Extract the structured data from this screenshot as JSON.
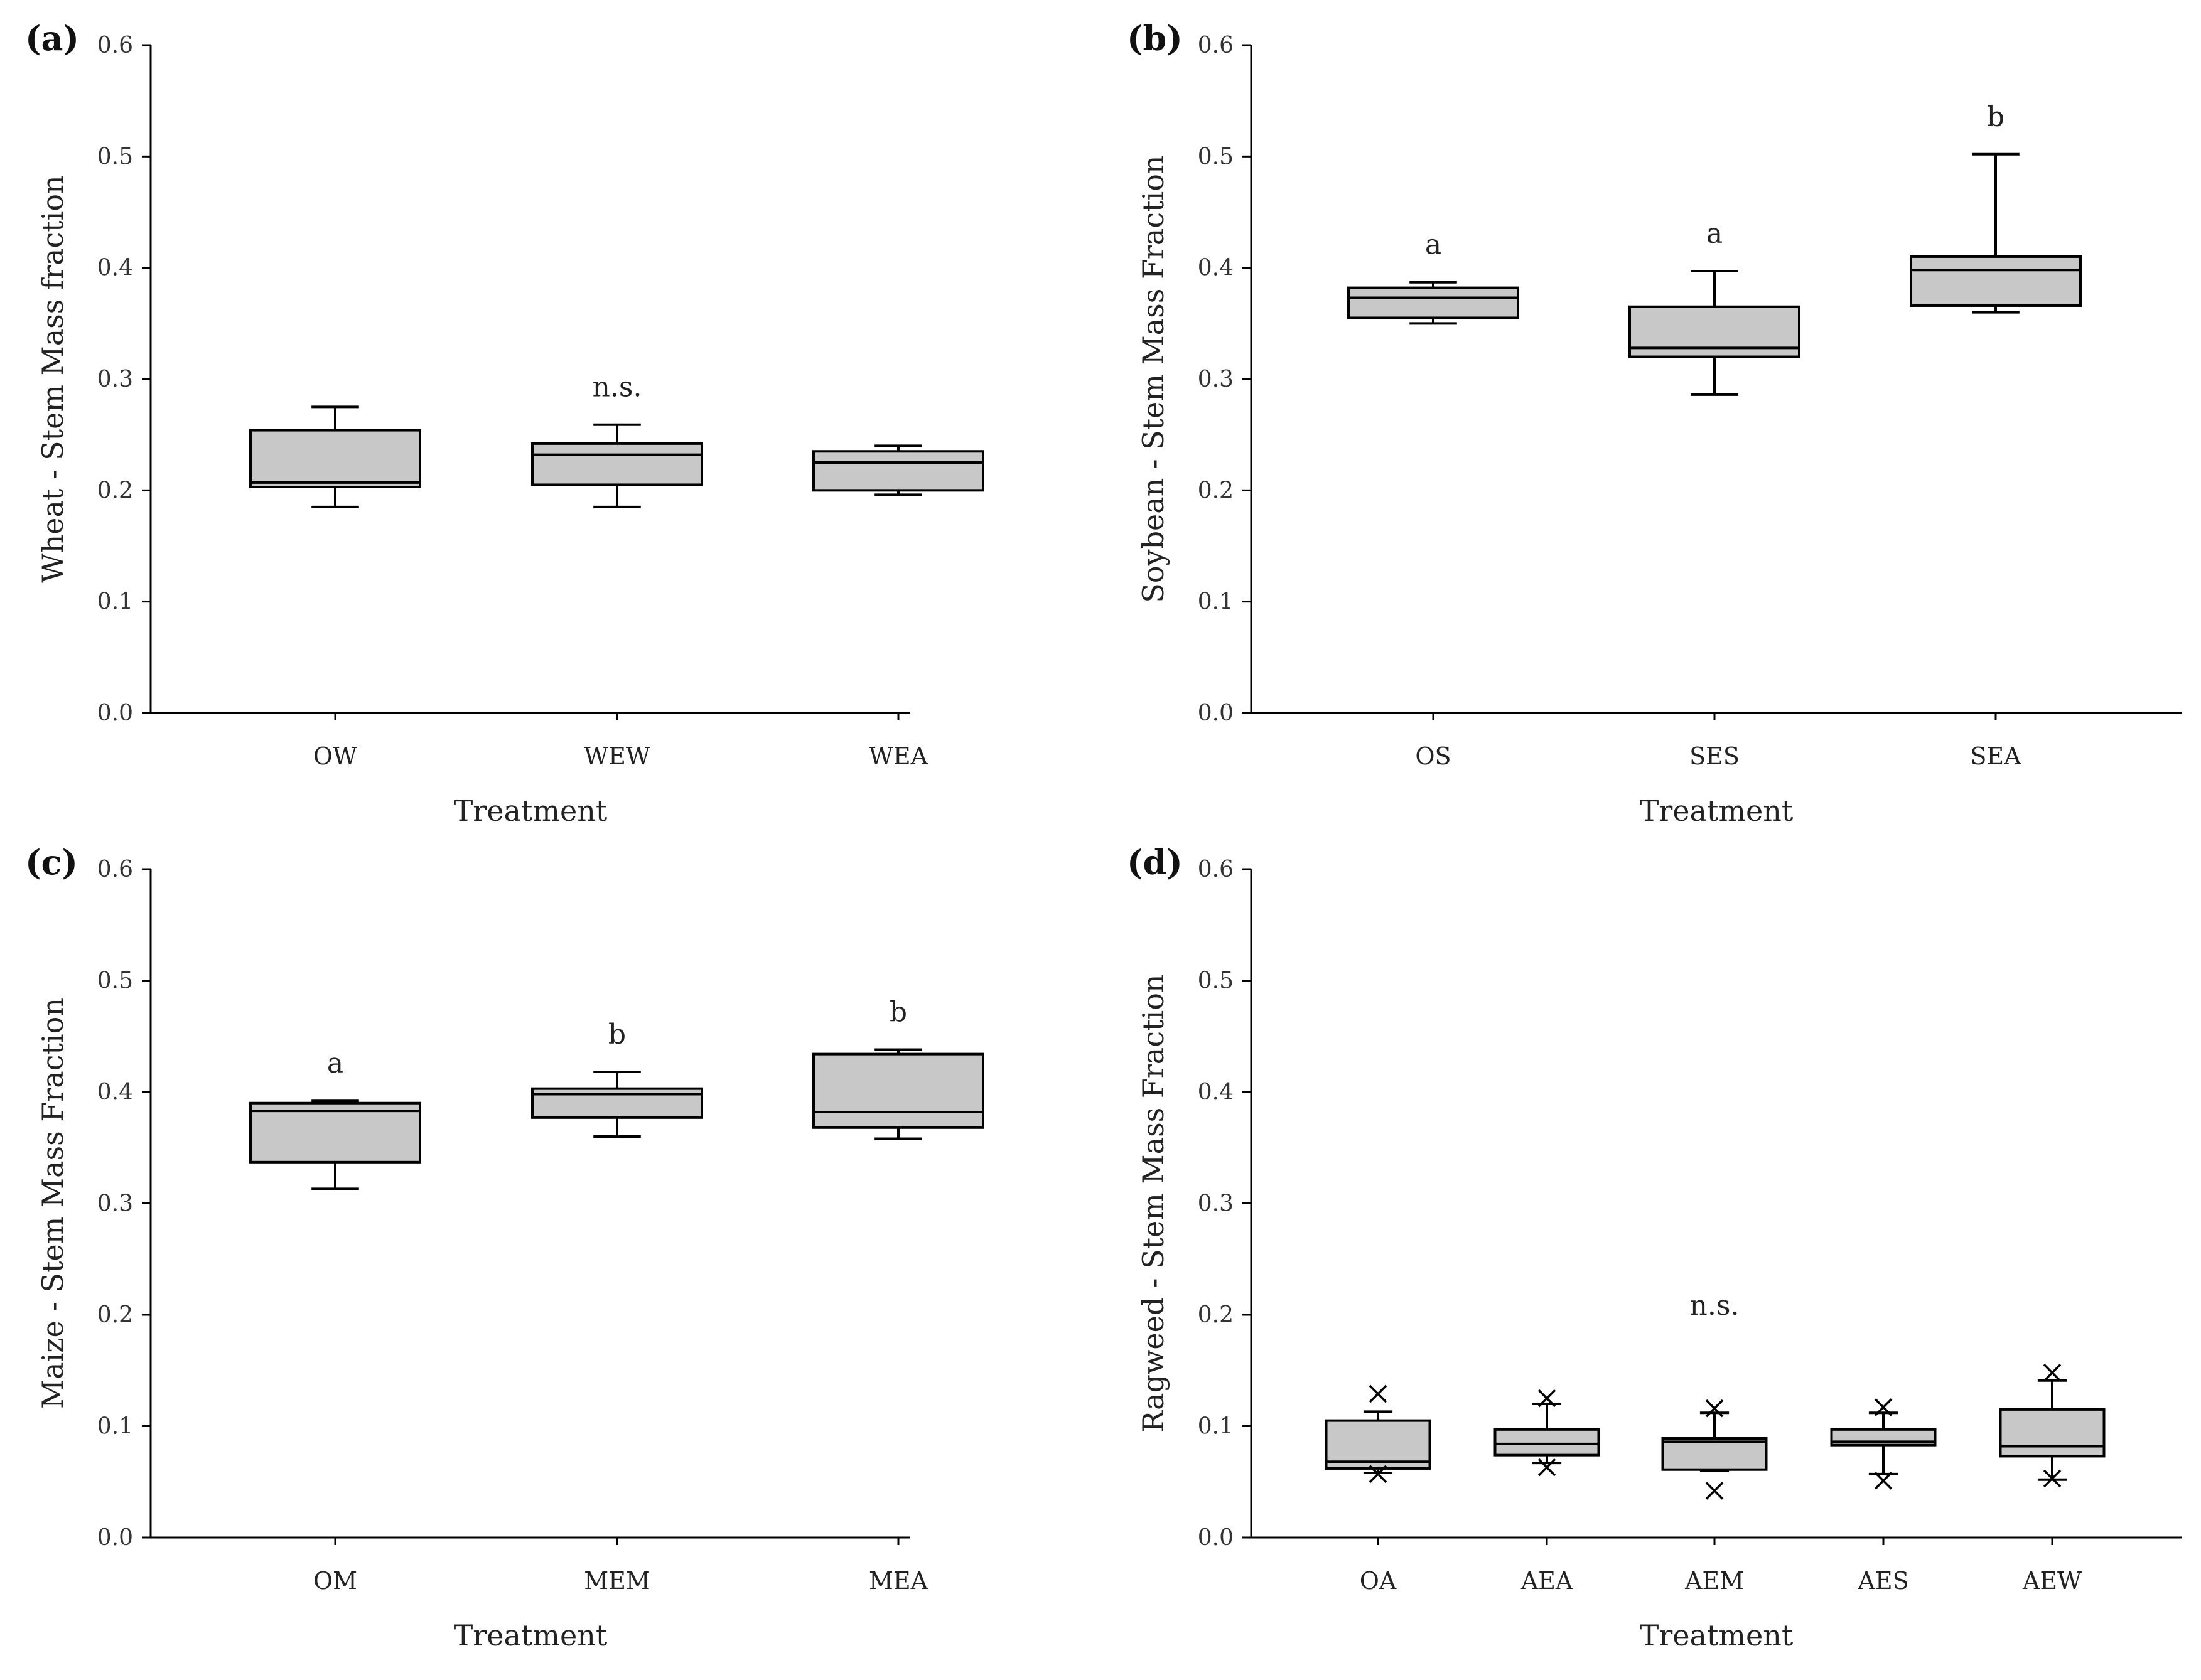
{
  "chart_data": [
    {
      "type": "box",
      "panel_label": "(a)",
      "ylabel": "Wheat - Stem Mass fraction",
      "xlabel": "Treatment",
      "ylim": [
        0,
        0.6
      ],
      "yticks": [
        "0.0",
        "0.1",
        "0.2",
        "0.3",
        "0.4",
        "0.5",
        "0.6"
      ],
      "groups": [
        {
          "category": "OW",
          "min": 0.185,
          "q1": 0.203,
          "median": 0.207,
          "q3": 0.254,
          "max": 0.275,
          "outliers": [],
          "sig": ""
        },
        {
          "category": "WEW",
          "min": 0.185,
          "q1": 0.205,
          "median": 0.232,
          "q3": 0.242,
          "max": 0.259,
          "outliers": [],
          "sig": "n.s."
        },
        {
          "category": "WEA",
          "min": 0.196,
          "q1": 0.2,
          "median": 0.225,
          "q3": 0.235,
          "max": 0.24,
          "outliers": [],
          "sig": ""
        }
      ]
    },
    {
      "type": "box",
      "panel_label": "(b)",
      "ylabel": "Soybean - Stem Mass Fraction",
      "xlabel": "Treatment",
      "ylim": [
        0,
        0.6
      ],
      "yticks": [
        "0.0",
        "0.1",
        "0.2",
        "0.3",
        "0.4",
        "0.5",
        "0.6"
      ],
      "groups": [
        {
          "category": "OS",
          "min": 0.35,
          "q1": 0.355,
          "median": 0.373,
          "q3": 0.382,
          "max": 0.387,
          "outliers": [],
          "sig": "a"
        },
        {
          "category": "SES",
          "min": 0.286,
          "q1": 0.32,
          "median": 0.328,
          "q3": 0.365,
          "max": 0.397,
          "outliers": [],
          "sig": "a"
        },
        {
          "category": "SEA",
          "min": 0.36,
          "q1": 0.366,
          "median": 0.398,
          "q3": 0.41,
          "max": 0.502,
          "outliers": [],
          "sig": "b"
        }
      ]
    },
    {
      "type": "box",
      "panel_label": "(c)",
      "ylabel": "Maize - Stem Mass Fraction",
      "xlabel": "Treatment",
      "ylim": [
        0,
        0.6
      ],
      "yticks": [
        "0.0",
        "0.1",
        "0.2",
        "0.3",
        "0.4",
        "0.5",
        "0.6"
      ],
      "groups": [
        {
          "category": "OM",
          "min": 0.313,
          "q1": 0.337,
          "median": 0.383,
          "q3": 0.39,
          "max": 0.392,
          "outliers": [],
          "sig": "a"
        },
        {
          "category": "MEM",
          "min": 0.36,
          "q1": 0.377,
          "median": 0.398,
          "q3": 0.403,
          "max": 0.418,
          "outliers": [],
          "sig": "b"
        },
        {
          "category": "MEA",
          "min": 0.358,
          "q1": 0.368,
          "median": 0.382,
          "q3": 0.434,
          "max": 0.438,
          "outliers": [],
          "sig": "b"
        }
      ]
    },
    {
      "type": "box",
      "panel_label": "(d)",
      "ylabel": "Ragweed - Stem Mass Fraction",
      "xlabel": "Treatment",
      "ylim": [
        0,
        0.6
      ],
      "yticks": [
        "0.0",
        "0.1",
        "0.2",
        "0.3",
        "0.4",
        "0.5",
        "0.6"
      ],
      "sig_text": "n.s.",
      "groups": [
        {
          "category": "OA",
          "min": 0.058,
          "q1": 0.062,
          "median": 0.068,
          "q3": 0.105,
          "max": 0.113,
          "outliers": [
            0.057,
            0.129
          ],
          "sig": ""
        },
        {
          "category": "AEA",
          "min": 0.067,
          "q1": 0.074,
          "median": 0.084,
          "q3": 0.097,
          "max": 0.12,
          "outliers": [
            0.063,
            0.125
          ],
          "sig": ""
        },
        {
          "category": "AEM",
          "min": 0.06,
          "q1": 0.061,
          "median": 0.086,
          "q3": 0.089,
          "max": 0.112,
          "outliers": [
            0.042,
            0.116
          ],
          "sig": "n.s."
        },
        {
          "category": "AES",
          "min": 0.057,
          "q1": 0.083,
          "median": 0.086,
          "q3": 0.097,
          "max": 0.112,
          "outliers": [
            0.051,
            0.117
          ],
          "sig": ""
        },
        {
          "category": "AEW",
          "min": 0.052,
          "q1": 0.073,
          "median": 0.082,
          "q3": 0.115,
          "max": 0.141,
          "outliers": [
            0.053,
            0.148
          ],
          "sig": ""
        }
      ]
    }
  ]
}
